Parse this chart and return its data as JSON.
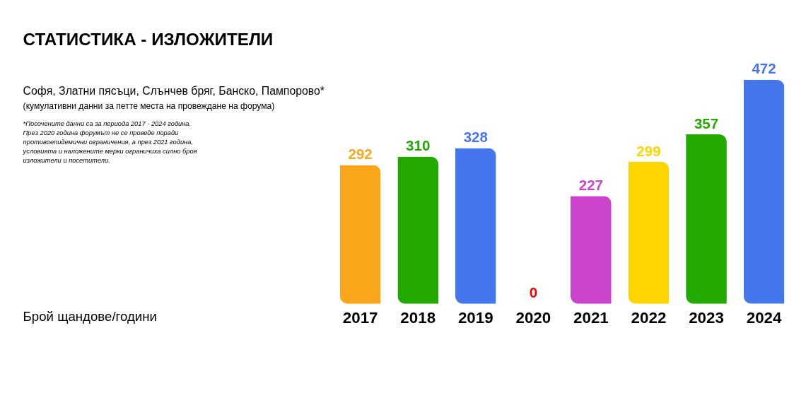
{
  "chart_data": {
    "type": "bar",
    "title": "СТАТИСТИКА - ИЗЛОЖИТЕЛИ",
    "subtitle": "Софя, Златни пясъци, Слънчев бряг, Банско, Пампорово*",
    "annotations": [
      "(кумулативни данни за петте места на провеждане на форума)",
      "*Посочените данни са за периода 2017 - 2024 година.\nПрез 2020 година форумът не се проведе поради\nпротивоепидемични ограничения, а през 2021 година,\nусловията и наложените мерки ограничиха силно броя\nизложители и посетители.",
      "Брой щандове/години"
    ],
    "categories": [
      "2017",
      "2018",
      "2019",
      "2020",
      "2021",
      "2022",
      "2023",
      "2024"
    ],
    "values": [
      292,
      310,
      328,
      0,
      227,
      299,
      357,
      472
    ],
    "colors": [
      "#faa61a",
      "#22aa00",
      "#4477ee",
      "#ee0000",
      "#cc44cc",
      "#ffd500",
      "#22aa00",
      "#4477ee"
    ],
    "data_labels": true,
    "grid": false
  }
}
